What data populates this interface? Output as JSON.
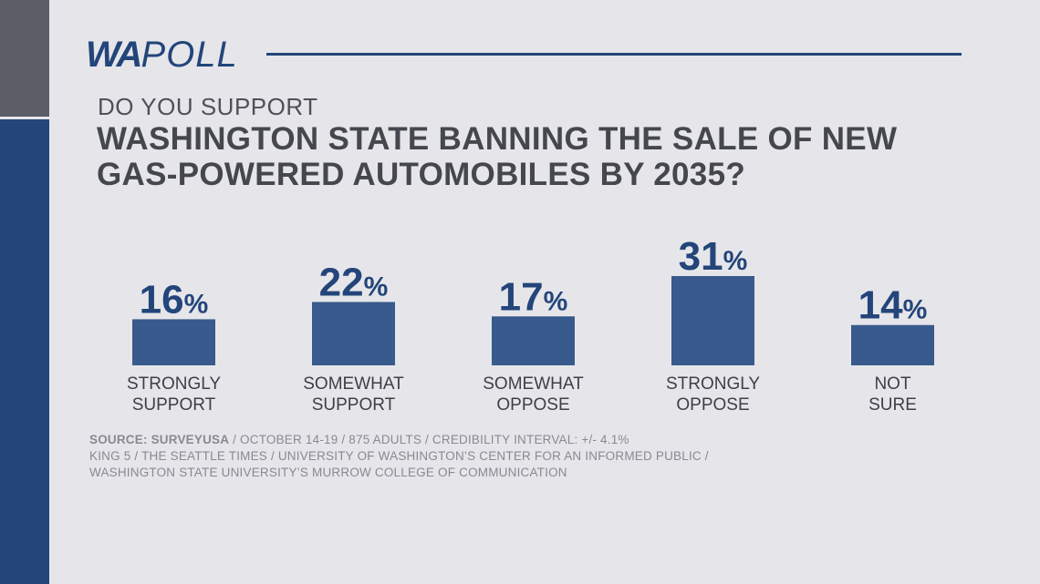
{
  "brand": {
    "logo_bold": "WA",
    "logo_light": "POLL",
    "accent_color": "#23457a",
    "side_top_color": "#5b5e66"
  },
  "question": {
    "lead": "DO YOU SUPPORT",
    "main": "WASHINGTON STATE BANNING THE SALE OF NEW GAS-POWERED AUTOMOBILES BY 2035?"
  },
  "chart_data": {
    "type": "bar",
    "title": "DO YOU SUPPORT WASHINGTON STATE BANNING THE SALE OF NEW GAS-POWERED AUTOMOBILES BY 2035?",
    "categories": [
      [
        "STRONGLY",
        "SUPPORT"
      ],
      [
        "SOMEWHAT",
        "SUPPORT"
      ],
      [
        "SOMEWHAT",
        "OPPOSE"
      ],
      [
        "STRONGLY",
        "OPPOSE"
      ],
      [
        "NOT",
        "SURE"
      ]
    ],
    "values": [
      16,
      22,
      17,
      31,
      14
    ],
    "value_suffix": "%",
    "bar_color": "#385a8c",
    "label_color": "#23457a",
    "xlabel": "",
    "ylabel": "",
    "ylim": [
      0,
      31
    ]
  },
  "source": {
    "label": "SOURCE: SURVEYUSA",
    "line1_rest": " / OCTOBER 14-19 / 875 ADULTS / CREDIBILITY INTERVAL: +/- 4.1%",
    "line2": "KING 5 / THE SEATTLE TIMES / UNIVERSITY OF WASHINGTON’S CENTER FOR AN INFORMED PUBLIC /",
    "line3": "WASHINGTON STATE UNIVERSITY’S MURROW COLLEGE OF COMMUNICATION"
  }
}
